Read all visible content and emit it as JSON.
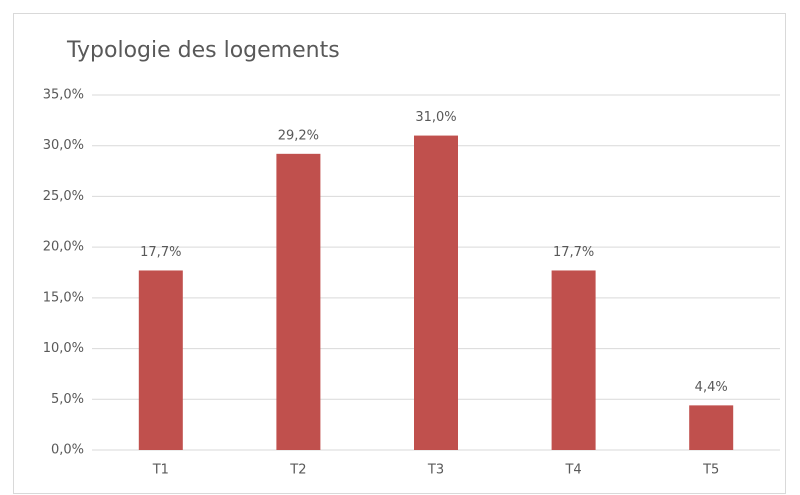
{
  "chart_data": {
    "type": "bar",
    "title": "Typologie des logements",
    "categories": [
      "T1",
      "T2",
      "T3",
      "T4",
      "T5"
    ],
    "values": [
      17.7,
      29.2,
      31.0,
      17.7,
      4.4
    ],
    "value_labels": [
      "17,7%",
      "29,2%",
      "31,0%",
      "17,7%",
      "4,4%"
    ],
    "color": "#c0504d",
    "ylim": [
      0,
      35
    ],
    "yticks": [
      {
        "value": 0,
        "label": "0,0%"
      },
      {
        "value": 5,
        "label": "5,0%"
      },
      {
        "value": 10,
        "label": "10,0%"
      },
      {
        "value": 15,
        "label": "15,0%"
      },
      {
        "value": 20,
        "label": "20,0%"
      },
      {
        "value": 25,
        "label": "25,0%"
      },
      {
        "value": 30,
        "label": "30,0%"
      },
      {
        "value": 35,
        "label": "35,0%"
      }
    ],
    "grid": true
  }
}
